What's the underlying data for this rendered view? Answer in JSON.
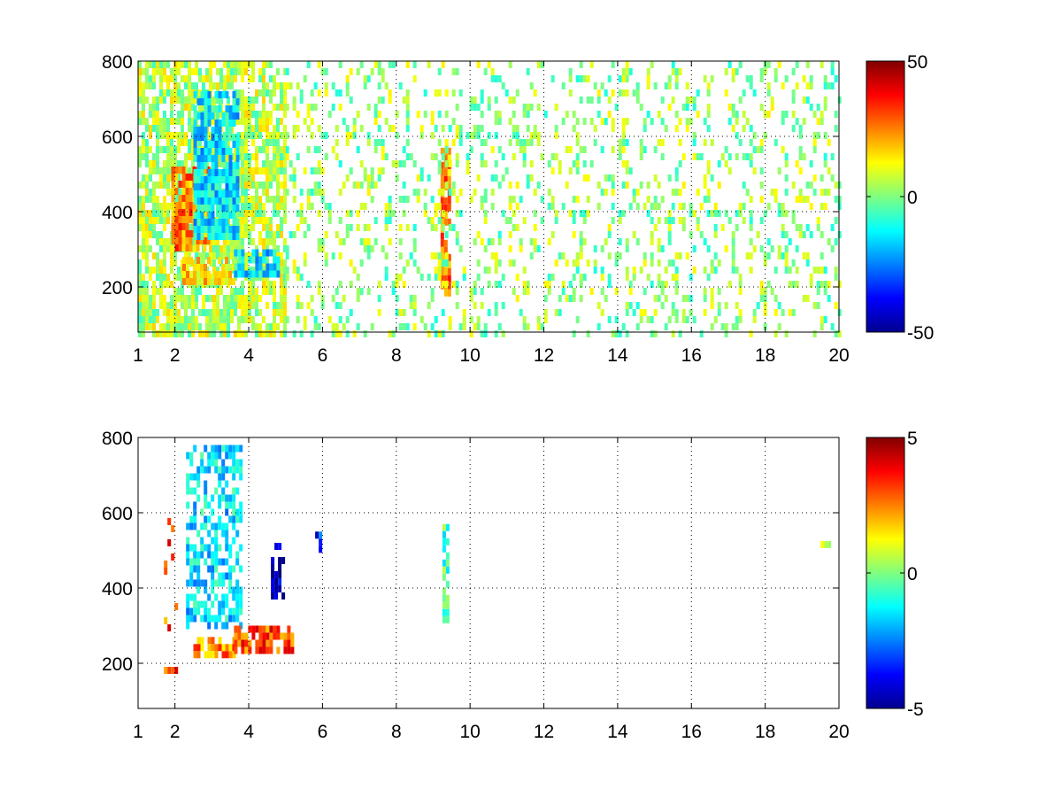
{
  "chart_data": [
    {
      "type": "heatmap",
      "title": "",
      "xlabel": "",
      "ylabel": "",
      "xlim": [
        1,
        20
      ],
      "ylim": [
        80,
        800
      ],
      "xticks": [
        1,
        2,
        4,
        6,
        8,
        10,
        12,
        14,
        16,
        18,
        20
      ],
      "yticks": [
        200,
        400,
        600,
        800
      ],
      "grid": true,
      "colormap": "jet",
      "clim": [
        -50,
        50
      ],
      "colorbar_ticks": [
        50,
        0,
        -50
      ],
      "features": [
        {
          "x": [
            1.0,
            5.0
          ],
          "y": [
            80,
            800
          ],
          "value": 5,
          "density": 0.75,
          "note": "dense broadband activity"
        },
        {
          "x": [
            1.9,
            2.9
          ],
          "y": [
            300,
            520
          ],
          "value": 25,
          "density": 0.85
        },
        {
          "x": [
            2.5,
            3.7
          ],
          "y": [
            330,
            720
          ],
          "value": -15,
          "density": 0.85
        },
        {
          "x": [
            2.2,
            3.6
          ],
          "y": [
            220,
            280
          ],
          "value": 15,
          "density": 0.8
        },
        {
          "x": [
            3.6,
            4.8
          ],
          "y": [
            240,
            300
          ],
          "value": -15,
          "density": 0.8
        },
        {
          "x": [
            9.2,
            9.4
          ],
          "y": [
            180,
            570
          ],
          "value": 25,
          "density": 0.8
        },
        {
          "x": [
            5.0,
            20.0
          ],
          "y": [
            80,
            800
          ],
          "value": 2,
          "density": 0.22,
          "note": "sparse scattered cells"
        }
      ]
    },
    {
      "type": "heatmap",
      "title": "",
      "xlabel": "",
      "ylabel": "",
      "xlim": [
        1,
        20
      ],
      "ylim": [
        80,
        800
      ],
      "xticks": [
        1,
        2,
        4,
        6,
        8,
        10,
        12,
        14,
        16,
        18,
        20
      ],
      "yticks": [
        200,
        400,
        600,
        800
      ],
      "grid": true,
      "colormap": "jet",
      "clim": [
        -5,
        5
      ],
      "colorbar_ticks": [
        5,
        0,
        -5
      ],
      "features": [
        {
          "x": [
            2.3,
            3.8
          ],
          "y": [
            300,
            780
          ],
          "value": -1.5,
          "density": 0.55
        },
        {
          "x": [
            2.5,
            3.6
          ],
          "y": [
            230,
            270
          ],
          "value": 2.5,
          "density": 0.8
        },
        {
          "x": [
            3.6,
            5.2
          ],
          "y": [
            240,
            300
          ],
          "value": 3.0,
          "density": 0.8
        },
        {
          "x": [
            4.6,
            4.9
          ],
          "y": [
            380,
            520
          ],
          "value": -4.5,
          "density": 0.6
        },
        {
          "x": [
            9.25,
            9.35
          ],
          "y": [
            320,
            570
          ],
          "value": -0.5,
          "density": 0.9
        },
        {
          "x": [
            5.8,
            5.9
          ],
          "y": [
            500,
            550
          ],
          "value": -3.5,
          "density": 0.7
        },
        {
          "x": [
            19.5,
            19.7
          ],
          "y": [
            515,
            525
          ],
          "value": 0.5,
          "density": 1.0
        },
        {
          "x": [
            1.7,
            2.0
          ],
          "y": [
            150,
            680
          ],
          "value": 3.0,
          "density": 0.15
        }
      ]
    }
  ]
}
